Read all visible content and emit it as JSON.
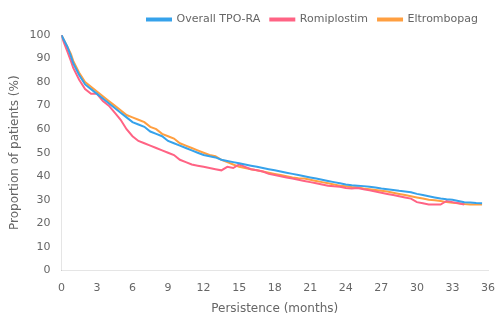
{
  "chart_data": {
    "type": "line",
    "xlabel": "Persistence (months)",
    "ylabel": "Proportion of patients (%)",
    "xlim": [
      0,
      36
    ],
    "ylim": [
      0,
      100
    ],
    "xticks": [
      0,
      3,
      6,
      9,
      12,
      15,
      18,
      21,
      24,
      27,
      30,
      33,
      36
    ],
    "yticks": [
      0,
      10,
      20,
      30,
      40,
      50,
      60,
      70,
      80,
      90,
      100
    ],
    "grid": false,
    "legend": "upper right",
    "series": [
      {
        "name": "Overall TPO-RA",
        "x": [
          0,
          0.2,
          0.5,
          0.8,
          1.0,
          1.5,
          2.0,
          2.5,
          3.0,
          3.5,
          4.0,
          4.5,
          5.0,
          5.5,
          6.0,
          6.5,
          7.0,
          7.5,
          8.0,
          8.5,
          9.0,
          9.5,
          10.0,
          10.5,
          11.0,
          11.5,
          12.0,
          12.5,
          13.0,
          13.5,
          14.0,
          14.5,
          15.0,
          15.5,
          16.0,
          16.5,
          17.0,
          17.5,
          18.0,
          18.5,
          19.0,
          19.5,
          20.0,
          20.5,
          21.0,
          21.5,
          22.0,
          22.5,
          23.0,
          23.5,
          24.0,
          24.5,
          25.0,
          25.5,
          26.0,
          26.5,
          27.0,
          27.5,
          28.0,
          28.5,
          29.0,
          29.5,
          30.0,
          30.5,
          31.0,
          31.5,
          32.0,
          32.5,
          33.0,
          33.5,
          34.0,
          34.5,
          35.0,
          35.5
        ],
        "values": [
          100,
          98,
          95,
          91,
          88,
          83,
          79,
          77,
          75,
          73,
          71,
          69,
          67,
          65,
          63,
          62,
          61,
          59,
          58,
          57,
          55,
          54,
          53,
          52,
          51,
          50,
          49,
          48.5,
          48,
          47,
          46.5,
          46,
          45.5,
          45,
          44.5,
          44,
          43.5,
          43,
          42.5,
          42,
          41.5,
          41,
          40.5,
          40,
          39.5,
          39,
          38.5,
          38,
          37.5,
          37,
          36.5,
          36.2,
          36,
          35.8,
          35.5,
          35.2,
          34.8,
          34.5,
          34.2,
          33.8,
          33.5,
          33.2,
          32.5,
          32.0,
          31.5,
          31.0,
          30.5,
          30.2,
          30.0,
          29.5,
          29.0,
          28.8,
          28.6,
          28.5
        ]
      },
      {
        "name": "Romiplostim",
        "x": [
          0,
          0.2,
          0.5,
          0.8,
          1.0,
          1.5,
          2.0,
          2.5,
          3.0,
          3.5,
          4.0,
          4.5,
          5.0,
          5.5,
          6.0,
          6.5,
          7.0,
          7.5,
          8.0,
          8.5,
          9.0,
          9.5,
          10.0,
          10.5,
          11.0,
          11.5,
          12.0,
          12.5,
          13.0,
          13.5,
          14.0,
          14.5,
          15.0,
          15.5,
          16.0,
          16.5,
          17.0,
          17.5,
          18.0,
          18.5,
          19.0,
          19.5,
          20.0,
          20.5,
          21.0,
          21.5,
          22.0,
          22.5,
          23.0,
          23.5,
          24.0,
          24.5,
          25.0,
          25.5,
          26.0,
          26.5,
          27.0,
          27.5,
          28.0,
          28.5,
          29.0,
          29.5,
          30.0,
          30.5,
          31.0,
          31.5,
          32.0,
          32.5,
          33.0,
          33.5,
          34.0
        ],
        "values": [
          100,
          97,
          93,
          89,
          86,
          81,
          77,
          75,
          75,
          72,
          70,
          67,
          64,
          60,
          57,
          55,
          54,
          53,
          52,
          51,
          50,
          49,
          47,
          46,
          45,
          44.5,
          44,
          43.5,
          43,
          42.5,
          44,
          43.5,
          45,
          44,
          43,
          42.5,
          42,
          41,
          40.5,
          40,
          39.5,
          39,
          38.5,
          38,
          37.5,
          37,
          36.5,
          36,
          35.7,
          35.5,
          35.0,
          34.8,
          35.0,
          34.5,
          34.0,
          33.5,
          33.0,
          32.5,
          32.0,
          31.5,
          31.0,
          30.5,
          29.0,
          28.5,
          28.0,
          28.0,
          28.0,
          29.5,
          29.0,
          28.5,
          28.0
        ]
      },
      {
        "name": "Eltrombopag",
        "x": [
          0,
          0.2,
          0.5,
          0.8,
          1.0,
          1.5,
          2.0,
          2.5,
          3.0,
          3.5,
          4.0,
          4.5,
          5.0,
          5.5,
          6.0,
          6.5,
          7.0,
          7.5,
          8.0,
          8.5,
          9.0,
          9.5,
          10.0,
          10.5,
          11.0,
          11.5,
          12.0,
          12.5,
          13.0,
          13.5,
          14.0,
          14.5,
          15.0,
          15.5,
          16.0,
          16.5,
          17.0,
          17.5,
          18.0,
          18.5,
          19.0,
          19.5,
          20.0,
          20.5,
          21.0,
          21.5,
          22.0,
          22.5,
          23.0,
          23.5,
          24.0,
          24.5,
          25.0,
          25.5,
          26.0,
          26.5,
          27.0,
          27.5,
          28.0,
          28.5,
          29.0,
          29.5,
          30.0,
          30.5,
          31.0,
          31.5,
          32.0,
          32.5,
          33.0,
          33.5,
          34.0,
          34.5,
          35.0,
          35.5
        ],
        "values": [
          100,
          98,
          95,
          92,
          89,
          84,
          80,
          78,
          76,
          74,
          72,
          70,
          68,
          66,
          65,
          64,
          63,
          61,
          60,
          58,
          57,
          56,
          54,
          53,
          52,
          51,
          50,
          49,
          48.5,
          47,
          46,
          45,
          44,
          43.5,
          43,
          42.5,
          42,
          41.5,
          41,
          40.5,
          40,
          39.5,
          39.2,
          39.0,
          38.5,
          38,
          37.5,
          37.0,
          36.5,
          36.0,
          35.7,
          35.4,
          35.2,
          34.8,
          34.5,
          34.2,
          33.8,
          33.5,
          33.0,
          32.5,
          32.0,
          31.5,
          31.0,
          30.5,
          30.0,
          29.8,
          29.5,
          29.0,
          28.7,
          28.5,
          28.2,
          28.0,
          28.0,
          28.0
        ]
      }
    ]
  }
}
